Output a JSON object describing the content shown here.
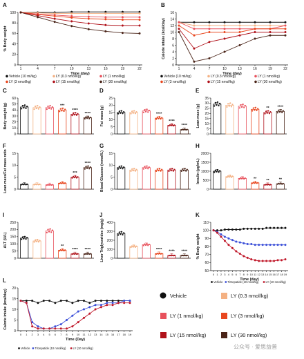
{
  "colors": {
    "vehicle": "#111111",
    "ly03": "#f4b183",
    "ly1": "#e8515c",
    "ly3": "#e8471f",
    "ly15": "#b0121b",
    "ly30": "#4a2418",
    "tirzepatide": "#3b4fd8",
    "ly10": "#c0182a"
  },
  "groups": [
    "Vehicle",
    "LY (0.3 nmol/kg)",
    "LY (1 nmol/kg)",
    "LY (3 nmol/kg)",
    "LY (15 nmol/kg)",
    "LY (30 nmol/kg)"
  ],
  "legend_bottom": {
    "vehicle": "Vehicle",
    "ly03": "LY (0.3 nmol/kg)",
    "ly1": "LY (1 nmol/kg)",
    "ly3": "LY (3 nmol/kg)",
    "ly15": "LY (15 nmol/kg)",
    "ly30": "LY (30 nmol/kg)"
  },
  "legend_ab": {
    "l1": "Vehicle (10 ml/kg)",
    "l2": "LY (0.3 nmol/kg)",
    "l3": "LY (1 nmol/kg)",
    "l4": "LY (3 nmol/kg)",
    "l5": "LY (15 nmol/kg)",
    "l6": "LY (30 nmol/kg)"
  },
  "legend_kl": {
    "vehicle": "Vehicle",
    "tirzepatide": "Tirzepatide (10 nmol/kg)",
    "ly10": "LY (10 nmol/kg)"
  },
  "watermark": "公众号 · 爱思益普",
  "chart_data": [
    {
      "panel": "A",
      "type": "line",
      "ylabel": "% Body weight",
      "xlabel": "Time (day)",
      "ylim": [
        0,
        100
      ],
      "xticks": [
        "1",
        "4",
        "7",
        "10",
        "13",
        "16",
        "19",
        "22"
      ],
      "yticks": [
        "0",
        "20",
        "40",
        "60",
        "80",
        "100"
      ],
      "x": [
        1,
        4,
        7,
        10,
        13,
        16,
        19,
        22
      ],
      "series": [
        {
          "key": "vehicle",
          "values": [
            100,
            100,
            100,
            101,
            101,
            101,
            101,
            101
          ]
        },
        {
          "key": "ly03",
          "values": [
            100,
            99,
            98,
            98,
            98,
            98,
            98,
            98
          ]
        },
        {
          "key": "ly1",
          "values": [
            100,
            97,
            95,
            93,
            92,
            91,
            91,
            91
          ]
        },
        {
          "key": "ly3",
          "values": [
            100,
            96,
            93,
            90,
            88,
            87,
            86,
            86
          ]
        },
        {
          "key": "ly15",
          "values": [
            100,
            94,
            88,
            83,
            79,
            76,
            75,
            75
          ]
        },
        {
          "key": "ly30",
          "values": [
            100,
            91,
            82,
            74,
            68,
            64,
            61,
            60
          ]
        }
      ]
    },
    {
      "panel": "B",
      "type": "line",
      "ylabel": "Calorie intake (kcal/day)",
      "xlabel": "Time (day)",
      "ylim": [
        0,
        16
      ],
      "xticks": [
        "1",
        "4",
        "7",
        "10",
        "13",
        "16",
        "19",
        "22"
      ],
      "yticks": [
        "0",
        "2",
        "4",
        "6",
        "8",
        "10",
        "12",
        "14",
        "16"
      ],
      "x": [
        1,
        4,
        7,
        10,
        13,
        16,
        19,
        22
      ],
      "series": [
        {
          "key": "vehicle",
          "values": [
            13,
            13,
            13,
            13,
            13,
            13,
            13,
            13
          ]
        },
        {
          "key": "ly03",
          "values": [
            13,
            12,
            12,
            12,
            12,
            12,
            12,
            12
          ]
        },
        {
          "key": "ly1",
          "values": [
            13,
            11,
            11,
            11,
            11,
            11,
            11,
            12
          ]
        },
        {
          "key": "ly3",
          "values": [
            12,
            9,
            10,
            10,
            10,
            11,
            11,
            11
          ]
        },
        {
          "key": "ly15",
          "values": [
            11,
            5,
            7,
            8,
            9,
            10,
            10,
            10
          ]
        },
        {
          "key": "ly30",
          "values": [
            10,
            1,
            2,
            4,
            6,
            8,
            9,
            9
          ]
        }
      ]
    },
    {
      "panel": "C",
      "type": "bar",
      "ylabel": "Body weight (g)",
      "ylim": [
        0,
        60
      ],
      "yticks": [
        "0",
        "10",
        "20",
        "30",
        "40",
        "50",
        "60"
      ],
      "values": [
        45,
        44,
        44,
        40,
        33,
        27
      ],
      "stars": [
        "",
        "",
        "",
        "***",
        "****",
        "****"
      ]
    },
    {
      "panel": "D",
      "type": "bar",
      "ylabel": "Fat mass (g)",
      "ylim": [
        0,
        25
      ],
      "yticks": [
        "0",
        "5",
        "10",
        "15",
        "20",
        "25"
      ],
      "values": [
        15,
        15,
        16,
        11,
        6,
        3
      ],
      "stars": [
        "",
        "",
        "",
        "****",
        "****",
        "****"
      ]
    },
    {
      "panel": "E",
      "type": "bar",
      "ylabel": "Lean mass (g)",
      "ylim": [
        0,
        35
      ],
      "yticks": [
        "0",
        "5",
        "10",
        "15",
        "20",
        "25",
        "30",
        "35"
      ],
      "values": [
        29,
        28,
        27,
        24,
        21,
        22
      ],
      "stars": [
        "",
        "",
        "",
        "",
        "**",
        "****"
      ]
    },
    {
      "panel": "F",
      "type": "bar",
      "ylabel": "Lean mass/Fat mass ratio",
      "ylim": [
        0,
        15
      ],
      "yticks": [
        "0",
        "5",
        "10",
        "15"
      ],
      "values": [
        2,
        2,
        1.8,
        2.5,
        5,
        9
      ],
      "stars": [
        "",
        "",
        "",
        "",
        "***",
        "****"
      ]
    },
    {
      "panel": "G",
      "type": "bar",
      "ylabel": "Blood Glucose (mmol/L)",
      "ylim": [
        0,
        15
      ],
      "yticks": [
        "0",
        "5",
        "10",
        "15"
      ],
      "values": [
        9,
        8,
        9,
        8,
        8,
        8
      ],
      "stars": [
        "",
        "",
        "",
        "",
        "",
        ""
      ]
    },
    {
      "panel": "H",
      "type": "bar",
      "ylabel": "Insulin (pg/mL)",
      "ylim": [
        0,
        2000
      ],
      "yticks": [
        "0",
        "500",
        "1000",
        "1500",
        "2000"
      ],
      "values": [
        1000,
        700,
        600,
        350,
        250,
        300
      ],
      "stars": [
        "",
        "",
        "",
        "**",
        "**",
        "**"
      ]
    },
    {
      "panel": "I",
      "type": "bar",
      "ylabel": "ALT (U/L)",
      "ylim": [
        0,
        250
      ],
      "yticks": [
        "0",
        "50",
        "100",
        "150",
        "200",
        "250"
      ],
      "values": [
        140,
        120,
        190,
        55,
        30,
        30
      ],
      "stars": [
        "",
        "",
        "",
        "**",
        "****",
        "****"
      ]
    },
    {
      "panel": "J",
      "type": "bar",
      "ylabel": "Liver Triglycerides (mg/g)",
      "ylim": [
        0,
        400
      ],
      "yticks": [
        "0",
        "100",
        "200",
        "300",
        "400"
      ],
      "values": [
        275,
        130,
        150,
        50,
        30,
        30
      ],
      "stars": [
        "",
        "",
        "",
        "****",
        "****",
        "****"
      ]
    },
    {
      "panel": "K",
      "type": "line",
      "ylabel": "% Body weight",
      "xlabel": "Time (day)",
      "ylim": [
        50,
        110
      ],
      "xticks": [
        "0",
        "1",
        "2",
        "3",
        "4",
        "5",
        "6",
        "7",
        "8",
        "9",
        "10",
        "11",
        "12",
        "13",
        "14",
        "15",
        "16",
        "17",
        "18",
        "19"
      ],
      "yticks": [
        "50",
        "60",
        "70",
        "80",
        "90",
        "100",
        "110"
      ],
      "x": [
        0,
        1,
        2,
        3,
        4,
        5,
        6,
        7,
        8,
        9,
        10,
        11,
        12,
        13,
        14,
        15,
        16,
        17,
        18,
        19
      ],
      "series": [
        {
          "key": "vehicle",
          "values": [
            100,
            100,
            100,
            101,
            101,
            101,
            101,
            101,
            102,
            102,
            102,
            102,
            102,
            102,
            103,
            103,
            103,
            103,
            103,
            103
          ]
        },
        {
          "key": "tirzepatide",
          "values": [
            100,
            98,
            95,
            92,
            90,
            88,
            86,
            85,
            84,
            83,
            83,
            82,
            82,
            82,
            82,
            82,
            82,
            82,
            82,
            82
          ]
        },
        {
          "key": "ly10",
          "values": [
            100,
            97,
            92,
            87,
            82,
            78,
            74,
            71,
            68,
            66,
            64,
            63,
            62,
            62,
            62,
            62,
            62,
            63,
            63,
            64
          ]
        }
      ]
    },
    {
      "panel": "L",
      "type": "line",
      "ylabel": "Calorie intake (kcal/day)",
      "xlabel": "Time (Day)",
      "ylim": [
        0,
        20
      ],
      "xticks": [
        "0",
        "1",
        "2",
        "3",
        "4",
        "5",
        "6",
        "7",
        "8",
        "9",
        "10",
        "11",
        "12",
        "13",
        "14",
        "15",
        "16",
        "17",
        "18",
        "19"
      ],
      "yticks": [
        "0",
        "5",
        "10",
        "15",
        "20"
      ],
      "x": [
        0,
        1,
        2,
        3,
        4,
        5,
        6,
        7,
        8,
        9,
        10,
        11,
        12,
        13,
        14,
        15,
        16,
        17,
        18,
        19
      ],
      "series": [
        {
          "key": "vehicle",
          "values": [
            14,
            14,
            14,
            13,
            14,
            14,
            13,
            14,
            14,
            13,
            14,
            14,
            13,
            14,
            14,
            14,
            14,
            14,
            14,
            14
          ]
        },
        {
          "key": "tirzepatide",
          "values": [
            14,
            13,
            4,
            2,
            1,
            1,
            2,
            3,
            5,
            7,
            9,
            10,
            11,
            12,
            12,
            13,
            13,
            13,
            14,
            14
          ]
        },
        {
          "key": "ly10",
          "values": [
            14,
            13,
            2,
            1,
            1,
            1,
            1,
            1,
            1,
            2,
            4,
            6,
            8,
            10,
            11,
            12,
            12,
            13,
            13,
            13
          ]
        }
      ]
    }
  ]
}
